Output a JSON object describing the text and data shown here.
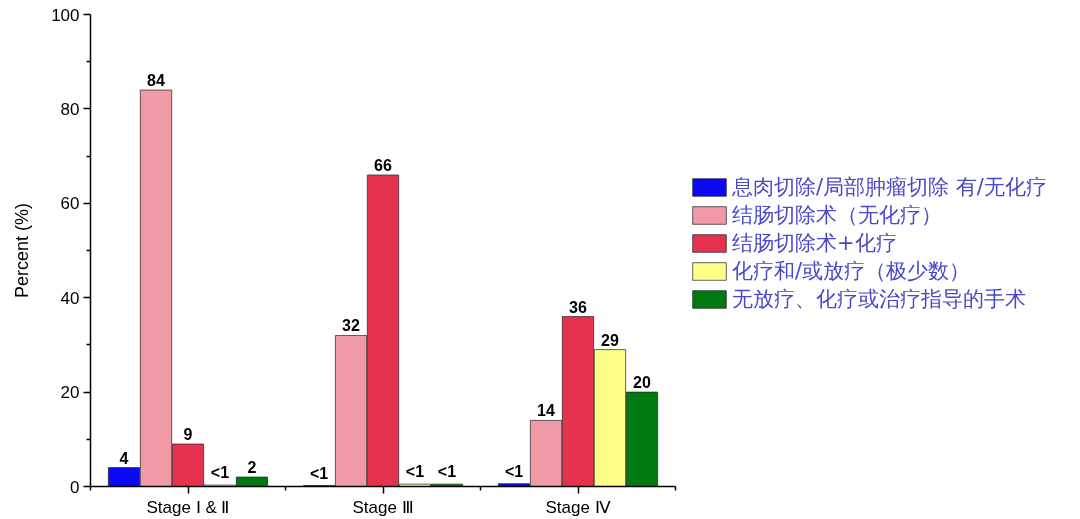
{
  "chart_data": {
    "type": "bar",
    "ylabel": "Percent (%)",
    "categories": [
      "Stage Ⅰ & Ⅱ",
      "Stage Ⅲ",
      "Stage Ⅳ"
    ],
    "series": [
      {
        "name": "息肉切除/局部肿瘤切除 有/无化疗",
        "color": "#0a0af5",
        "values": [
          4,
          0.2,
          0.6
        ],
        "value_labels": [
          "4",
          "<1",
          "<1"
        ]
      },
      {
        "name": "结肠切除术（无化疗）",
        "color": "#f09aa8",
        "values": [
          84,
          32,
          14
        ],
        "value_labels": [
          "84",
          "32",
          "14"
        ]
      },
      {
        "name": "结肠切除术+化疗",
        "color": "#e5334f",
        "values": [
          9,
          66,
          36
        ],
        "value_labels": [
          "9",
          "66",
          "36"
        ]
      },
      {
        "name": "化疗和/或放疗（极少数）",
        "color": "#ffff88",
        "values": [
          0.3,
          0.5,
          29
        ],
        "value_labels": [
          "<1",
          "<1",
          "29"
        ]
      },
      {
        "name": "无放疗、化疗或治疗指导的手术",
        "color": "#007a10",
        "values": [
          2,
          0.5,
          20
        ],
        "value_labels": [
          "2",
          "<1",
          "20"
        ]
      }
    ],
    "ylim": [
      0,
      100
    ],
    "yticks": [
      0,
      {
        "value": 10,
        "label": null
      },
      20,
      {
        "value": 30,
        "label": null
      },
      40,
      {
        "value": 50,
        "label": null
      },
      60,
      {
        "value": 70,
        "label": null
      },
      80,
      {
        "value": 90,
        "label": null
      },
      100
    ],
    "legend": "right"
  }
}
